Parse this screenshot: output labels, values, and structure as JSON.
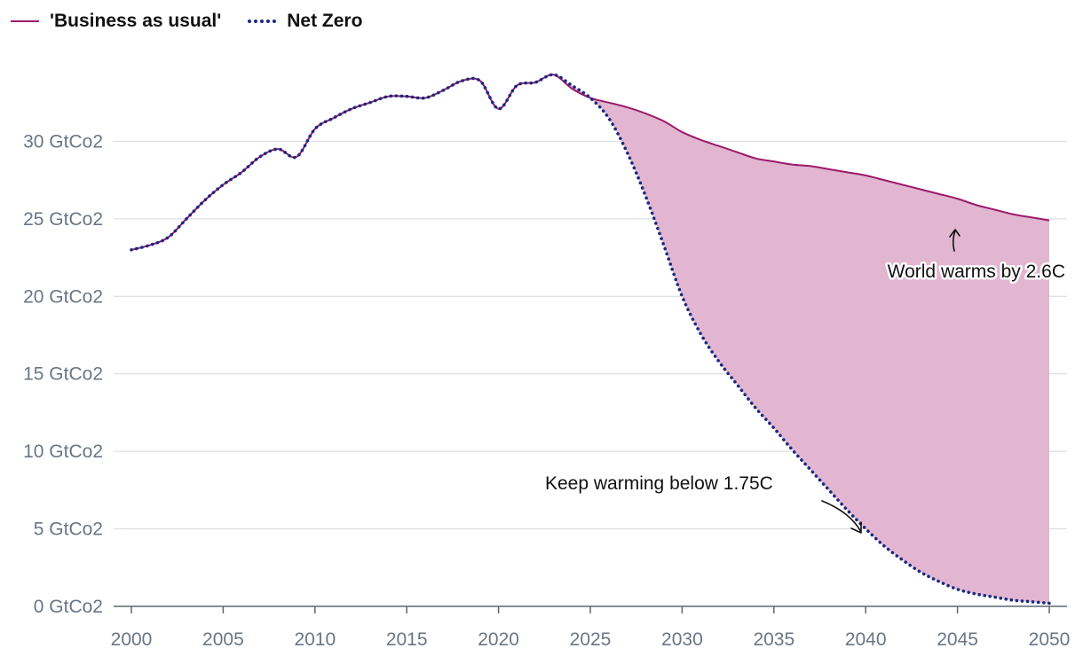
{
  "legend": {
    "items": [
      {
        "label": "'Business as usual'",
        "color": "#9c1b6b",
        "style": "solid"
      },
      {
        "label": "Net Zero",
        "color": "#1a2a80",
        "style": "dotted"
      }
    ]
  },
  "chart_data": {
    "type": "area",
    "title": "",
    "xlabel": "",
    "ylabel": "",
    "xlim": [
      2000,
      2050
    ],
    "ylim": [
      0,
      35
    ],
    "grid": true,
    "legend_position": "top-left",
    "fill_color": "#e2b5d0",
    "x_ticks": [
      2000,
      2005,
      2010,
      2015,
      2020,
      2025,
      2030,
      2035,
      2040,
      2045,
      2050
    ],
    "x_tick_labels": [
      "2000",
      "2005",
      "2010",
      "2015",
      "2020",
      "2025",
      "2030",
      "2035",
      "2040",
      "2045",
      "2050"
    ],
    "y_ticks": [
      0,
      5,
      10,
      15,
      20,
      25,
      30
    ],
    "y_tick_labels": [
      "0 GtCo2",
      "5 GtCo2",
      "10 GtCo2",
      "15 GtCo2",
      "20 GtCo2",
      "25 GtCo2",
      "30 GtCo2"
    ],
    "series": [
      {
        "name": "'Business as usual'",
        "color": "#9c1b6b",
        "style": "solid",
        "x": [
          2000,
          2001,
          2002,
          2003,
          2004,
          2005,
          2006,
          2007,
          2008,
          2009,
          2010,
          2011,
          2012,
          2013,
          2014,
          2015,
          2016,
          2017,
          2018,
          2019,
          2020,
          2021,
          2022,
          2023,
          2024,
          2025,
          2026,
          2027,
          2028,
          2029,
          2030,
          2031,
          2032,
          2033,
          2034,
          2035,
          2036,
          2037,
          2038,
          2039,
          2040,
          2041,
          2042,
          2043,
          2044,
          2045,
          2046,
          2047,
          2048,
          2049,
          2050
        ],
        "values": [
          23.0,
          23.3,
          23.8,
          25.0,
          26.2,
          27.2,
          28.0,
          29.0,
          29.5,
          29.0,
          30.8,
          31.5,
          32.1,
          32.5,
          32.9,
          32.9,
          32.8,
          33.3,
          33.9,
          33.9,
          32.1,
          33.6,
          33.8,
          34.3,
          33.4,
          32.8,
          32.5,
          32.2,
          31.8,
          31.3,
          30.6,
          30.1,
          29.7,
          29.3,
          28.9,
          28.7,
          28.5,
          28.4,
          28.2,
          28.0,
          27.8,
          27.5,
          27.2,
          26.9,
          26.6,
          26.3,
          25.9,
          25.6,
          25.3,
          25.1,
          24.9
        ]
      },
      {
        "name": "Net Zero",
        "color": "#1a2a80",
        "style": "dotted",
        "x": [
          2000,
          2001,
          2002,
          2003,
          2004,
          2005,
          2006,
          2007,
          2008,
          2009,
          2010,
          2011,
          2012,
          2013,
          2014,
          2015,
          2016,
          2017,
          2018,
          2019,
          2020,
          2021,
          2022,
          2023,
          2024,
          2025,
          2026,
          2027,
          2028,
          2029,
          2030,
          2031,
          2032,
          2033,
          2034,
          2035,
          2036,
          2037,
          2038,
          2039,
          2040,
          2041,
          2042,
          2043,
          2044,
          2045,
          2046,
          2047,
          2048,
          2049,
          2050
        ],
        "values": [
          23.0,
          23.3,
          23.8,
          25.0,
          26.2,
          27.2,
          28.0,
          29.0,
          29.5,
          29.0,
          30.8,
          31.5,
          32.1,
          32.5,
          32.9,
          32.9,
          32.8,
          33.3,
          33.9,
          33.9,
          32.1,
          33.6,
          33.8,
          34.3,
          33.6,
          32.8,
          31.5,
          29.3,
          26.5,
          23.3,
          20.0,
          17.6,
          15.8,
          14.3,
          12.8,
          11.5,
          10.1,
          8.8,
          7.5,
          6.2,
          5.0,
          3.9,
          3.0,
          2.2,
          1.6,
          1.1,
          0.8,
          0.6,
          0.4,
          0.3,
          0.2
        ]
      }
    ],
    "annotations": [
      {
        "text": "World warms by 2.6C",
        "x": 2045,
        "y": 25.0
      },
      {
        "text": "Keep warming below 1.75C",
        "x": 2040,
        "y": 5.0
      }
    ]
  }
}
